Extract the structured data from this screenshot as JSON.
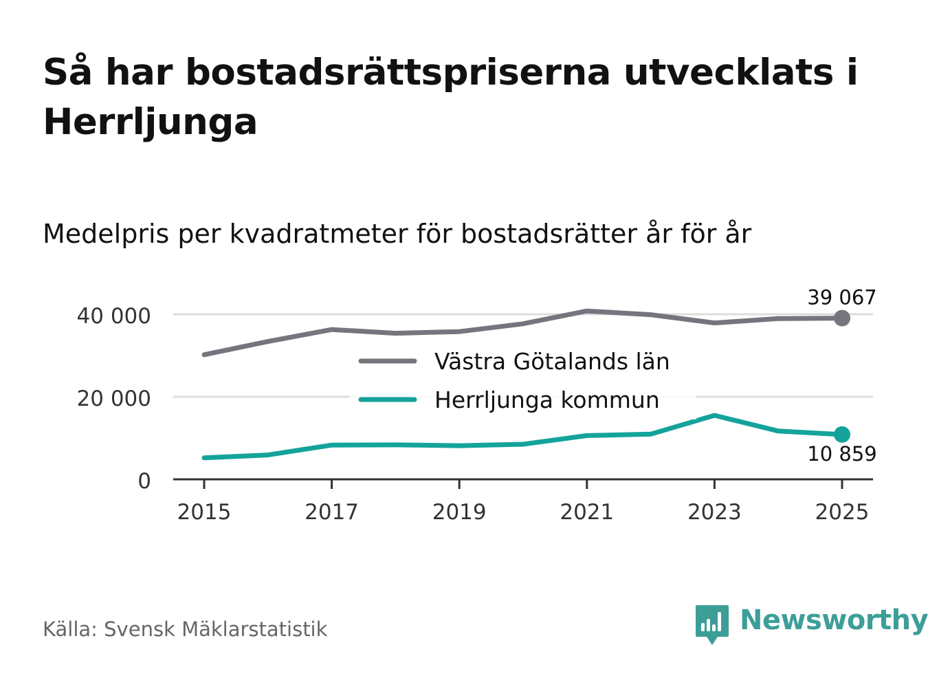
{
  "title": "Så har bostadsrättspriserna utvecklats i Herrljunga",
  "subtitle": "Medelpris per kvadratmeter för bostadsrätter år för år",
  "source": "Källa: Svensk Mäklarstatistik",
  "brand": "Newsworthy",
  "colors": {
    "county": "#75757d",
    "municipality": "#14a39a",
    "grid": "#dddddd",
    "axis": "#333333",
    "brand": "#3d9e98"
  },
  "chart_data": {
    "type": "line",
    "title": "Så har bostadsrättspriserna utvecklats i Herrljunga",
    "subtitle": "Medelpris per kvadratmeter för bostadsrätter år för år",
    "xlabel": "",
    "ylabel": "",
    "x": [
      2015,
      2016,
      2017,
      2018,
      2019,
      2020,
      2021,
      2022,
      2023,
      2024,
      2025
    ],
    "xticks": [
      "2015",
      "2017",
      "2019",
      "2021",
      "2023",
      "2025"
    ],
    "yticks": [
      {
        "value": 0,
        "label": "0"
      },
      {
        "value": 20000,
        "label": "20 000"
      },
      {
        "value": 40000,
        "label": "40 000"
      }
    ],
    "ylim": [
      0,
      42500
    ],
    "grid": true,
    "legend_position": "center",
    "series": [
      {
        "name": "Västra Götalands län",
        "color": "#75757d",
        "values": [
          30200,
          33400,
          36300,
          35400,
          35800,
          37700,
          40800,
          39900,
          37900,
          38950,
          39067
        ],
        "end_label": "39 067"
      },
      {
        "name": "Herrljunga kommun",
        "color": "#14a39a",
        "values": [
          5200,
          5900,
          8300,
          8350,
          8150,
          8500,
          10600,
          10950,
          15500,
          11700,
          10859
        ],
        "end_label": "10 859"
      }
    ]
  }
}
